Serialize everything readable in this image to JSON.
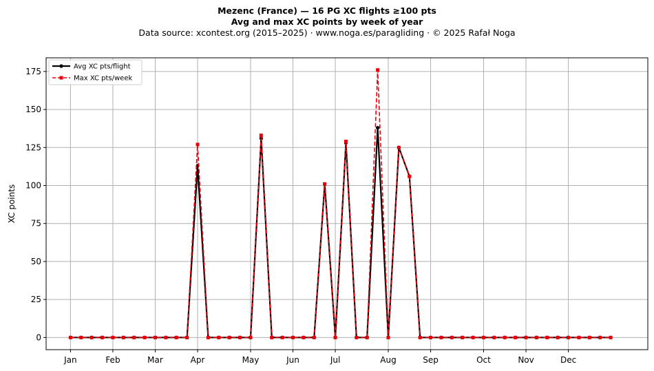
{
  "chart_data": {
    "type": "line",
    "title": "Mezenc (France)  —  16 PG XC flights ≥100 pts",
    "subtitle": "Avg and max XC points by week of year",
    "source": "Data source: xcontest.org (2015–2025)  ·  www.noga.es/paragliding  ·  © 2025 Rafał Noga",
    "xlabel": "",
    "ylabel": "XC points",
    "ylim": [
      -8,
      184
    ],
    "xlim": [
      -2.3,
      54.5
    ],
    "yticks": [
      0,
      25,
      50,
      75,
      100,
      125,
      150,
      175
    ],
    "xticks": [
      {
        "label": "Jan",
        "week": 0
      },
      {
        "label": "Feb",
        "week": 4
      },
      {
        "label": "Mar",
        "week": 8
      },
      {
        "label": "Apr",
        "week": 12
      },
      {
        "label": "May",
        "week": 17
      },
      {
        "label": "Jun",
        "week": 21
      },
      {
        "label": "Jul",
        "week": 25
      },
      {
        "label": "Aug",
        "week": 30
      },
      {
        "label": "Sep",
        "week": 34
      },
      {
        "label": "Oct",
        "week": 39
      },
      {
        "label": "Nov",
        "week": 43
      },
      {
        "label": "Dec",
        "week": 47
      }
    ],
    "grid": true,
    "legend_position": "top-left",
    "x": [
      0,
      1,
      2,
      3,
      4,
      5,
      6,
      7,
      8,
      9,
      10,
      11,
      12,
      13,
      14,
      15,
      16,
      17,
      18,
      19,
      20,
      21,
      22,
      23,
      24,
      25,
      26,
      27,
      28,
      29,
      30,
      31,
      32,
      33,
      34,
      35,
      36,
      37,
      38,
      39,
      40,
      41,
      42,
      43,
      44,
      45,
      46,
      47,
      48,
      49,
      50,
      51
    ],
    "series": [
      {
        "name": "Avg XC pts/flight",
        "color": "#000000",
        "style": "solid-circle",
        "values": [
          0,
          0,
          0,
          0,
          0,
          0,
          0,
          0,
          0,
          0,
          0,
          0,
          113,
          0,
          0,
          0,
          0,
          0,
          131,
          0,
          0,
          0,
          0,
          0,
          101,
          0,
          128,
          0,
          0,
          138,
          0,
          125,
          106,
          0,
          0,
          0,
          0,
          0,
          0,
          0,
          0,
          0,
          0,
          0,
          0,
          0,
          0,
          0,
          0,
          0,
          0,
          0
        ]
      },
      {
        "name": "Max XC pts/week",
        "color": "#e8000b",
        "style": "dashed-square",
        "values": [
          0,
          0,
          0,
          0,
          0,
          0,
          0,
          0,
          0,
          0,
          0,
          0,
          127,
          0,
          0,
          0,
          0,
          0,
          133,
          0,
          0,
          0,
          0,
          0,
          101,
          0,
          129,
          0,
          0,
          176,
          0,
          125,
          106,
          0,
          0,
          0,
          0,
          0,
          0,
          0,
          0,
          0,
          0,
          0,
          0,
          0,
          0,
          0,
          0,
          0,
          0,
          0
        ]
      }
    ]
  }
}
